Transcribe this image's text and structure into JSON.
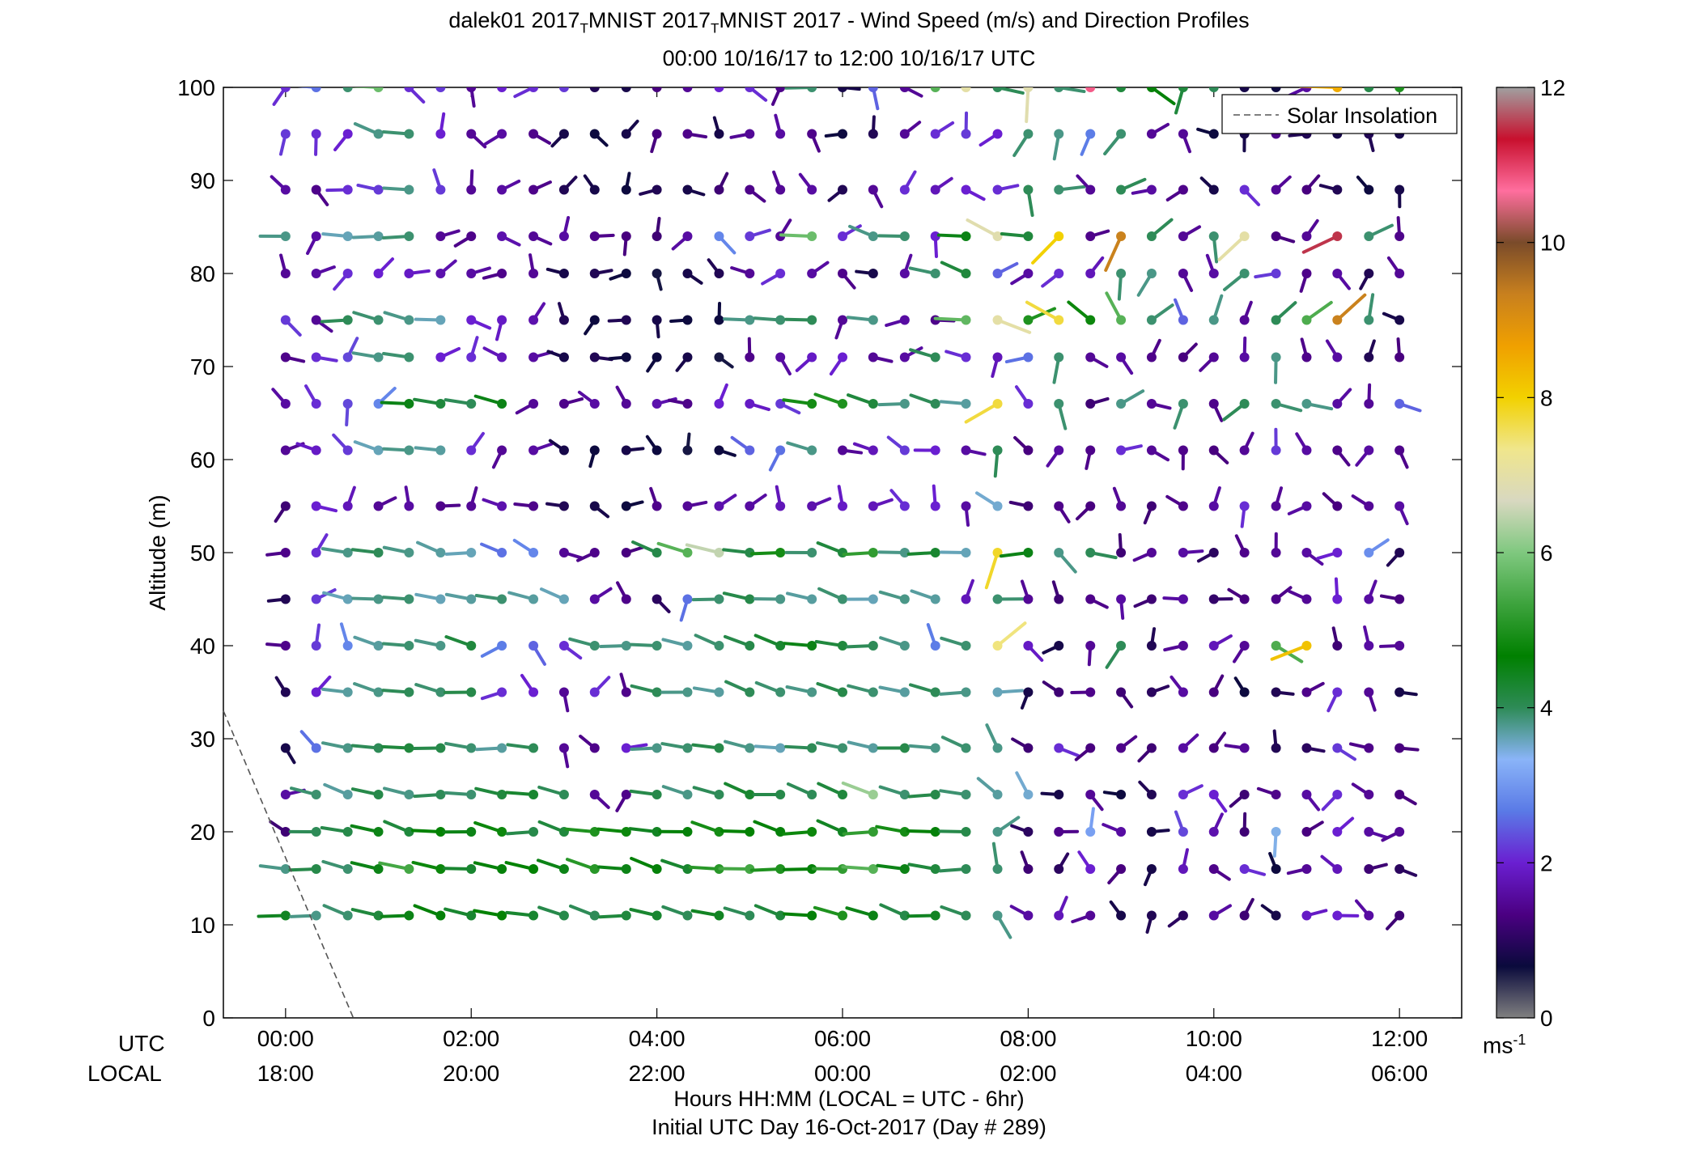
{
  "chart_data": {
    "type": "wind_barb_profile",
    "title": {
      "prefix": "dalek01 2017",
      "sub1": "T",
      "mid": "MNIST 2017",
      "sub2": "T",
      "suffix": "MNIST 2017 - Wind Speed (m/s) and Direction Profiles"
    },
    "subtitle": "00:00 10/16/17 to 12:00 10/16/17  UTC",
    "ylabel": "Altitude (m)",
    "ylim": [
      0,
      100
    ],
    "y_ticks": [
      "0",
      "10",
      "20",
      "30",
      "40",
      "50",
      "60",
      "70",
      "80",
      "90",
      "100"
    ],
    "xlim_hours": [
      -0.67,
      12.67
    ],
    "x_ticks_hours": [
      0,
      2,
      4,
      6,
      8,
      10,
      12
    ],
    "x_ticks_utc": [
      "00:00",
      "02:00",
      "04:00",
      "06:00",
      "08:00",
      "10:00",
      "12:00"
    ],
    "x_ticks_local": [
      "18:00",
      "20:00",
      "22:00",
      "00:00",
      "02:00",
      "04:00",
      "06:00"
    ],
    "utc_label": "UTC",
    "local_label": "LOCAL",
    "xlabel": "Hours HH:MM  (LOCAL = UTC - 6hr)",
    "xlabel2": "Initial UTC Day 16-Oct-2017 (Day # 289)",
    "legend": {
      "entry": "Solar Insolation",
      "placement": "top-right"
    },
    "solar_insolation_line": {
      "x_hours": [
        -0.67,
        0.73
      ],
      "y_m": [
        33,
        0
      ]
    },
    "colorbar": {
      "min": 0,
      "max": 12,
      "ticks": [
        "0",
        "2",
        "4",
        "6",
        "8",
        "10",
        "12"
      ],
      "unit_label": "ms",
      "unit_exp": "-1",
      "stops": [
        "#808080",
        "#0a0a3c",
        "#4b0082",
        "#6a1fd1",
        "#5a7ae6",
        "#8ab4f8",
        "#2e8b57",
        "#008000",
        "#3da33d",
        "#7fc87f",
        "#d8d8c0",
        "#f0e68c",
        "#f2d100",
        "#f0a000",
        "#c8801e",
        "#7a4b2a",
        "#ff6e9e",
        "#c8102e",
        "#a0a0a0"
      ]
    },
    "altitudes_m": [
      11,
      16,
      20,
      24,
      29,
      35,
      40,
      45,
      50,
      55,
      61,
      66,
      71,
      75,
      80,
      84,
      89,
      95,
      100
    ],
    "times_hours": [
      0,
      0.33,
      0.67,
      1,
      1.33,
      1.67,
      2,
      2.33,
      2.67,
      3,
      3.33,
      3.67,
      4,
      4.33,
      4.67,
      5,
      5.33,
      5.67,
      6,
      6.33,
      6.67,
      7,
      7.33,
      7.67,
      8,
      8.33,
      8.67,
      9,
      9.33,
      9.67,
      10,
      10.33,
      10.67,
      11,
      11.33,
      11.67,
      12
    ],
    "speed_scale_ms": {
      "11": [
        4.4,
        3.8,
        3.9,
        4.2,
        4.5,
        4.6,
        4.3,
        4.7,
        4.3,
        4.1,
        4.0,
        4.2,
        4.3,
        4.0,
        4.4,
        4.0,
        4.2,
        4.6,
        5.0,
        4.5,
        4.1,
        4.4,
        4.0,
        3.8,
        1.6,
        1.8,
        1.5,
        0.8,
        0.9,
        1.0,
        1.6,
        1.2,
        0.8,
        1.9,
        2.0,
        1.6,
        1.2
      ],
      "16": [
        3.8,
        4.1,
        3.9,
        4.5,
        5.4,
        4.8,
        4.3,
        4.6,
        4.7,
        4.5,
        5.1,
        4.5,
        4.6,
        4.3,
        5.1,
        5.4,
        5.0,
        4.6,
        5.2,
        5.6,
        4.5,
        4.2,
        4.0,
        3.9,
        1.2,
        1.0,
        2.0,
        1.3,
        0.8,
        1.8,
        1.4,
        2.1,
        0.7,
        1.5,
        1.8,
        1.2,
        1.0
      ],
      "20": [
        1.2,
        4.0,
        4.1,
        4.5,
        4.2,
        4.7,
        4.5,
        4.8,
        4.1,
        4.2,
        5.0,
        4.8,
        4.4,
        4.6,
        4.9,
        4.7,
        4.6,
        4.8,
        4.4,
        5.2,
        4.9,
        4.6,
        4.1,
        3.8,
        1.0,
        1.4,
        3.1,
        1.6,
        0.8,
        2.3,
        1.7,
        1.2,
        3.4,
        1.3,
        2.0,
        1.6,
        1.5
      ],
      "24": [
        1.6,
        3.9,
        3.7,
        4.1,
        3.8,
        4.0,
        3.9,
        4.2,
        4.3,
        4.0,
        1.5,
        1.4,
        4.1,
        3.8,
        4.0,
        4.3,
        4.1,
        4.0,
        4.2,
        6.2,
        3.9,
        4.1,
        3.9,
        3.7,
        3.5,
        0.8,
        1.5,
        0.7,
        0.9,
        2.1,
        2.0,
        1.2,
        1.4,
        1.6,
        2.1,
        1.5,
        1.3
      ],
      "29": [
        0.8,
        2.6,
        3.8,
        4.0,
        4.2,
        4.1,
        3.9,
        3.7,
        4.0,
        1.5,
        1.4,
        2.0,
        3.8,
        3.9,
        4.1,
        3.8,
        3.6,
        4.0,
        3.9,
        3.7,
        4.1,
        3.8,
        3.9,
        3.8,
        1.2,
        2.1,
        1.3,
        1.4,
        1.2,
        1.6,
        1.3,
        1.5,
        0.9,
        1.0,
        2.2,
        1.4,
        1.3
      ],
      "35": [
        0.9,
        2.0,
        3.7,
        3.8,
        4.0,
        3.9,
        4.1,
        2.1,
        2.0,
        1.5,
        2.1,
        1.4,
        4.0,
        3.8,
        3.7,
        4.0,
        3.9,
        3.8,
        4.1,
        3.9,
        3.7,
        4.0,
        3.8,
        3.6,
        0.8,
        1.2,
        1.4,
        1.2,
        1.0,
        1.6,
        1.3,
        0.7,
        0.9,
        1.4,
        2.1,
        1.5,
        0.8
      ],
      "40": [
        1.4,
        2.2,
        2.8,
        3.7,
        3.9,
        3.8,
        4.2,
        2.7,
        2.5,
        2.1,
        3.9,
        3.8,
        3.9,
        3.7,
        3.9,
        4.1,
        4.3,
        4.5,
        4.2,
        4.0,
        3.8,
        2.7,
        3.9,
        7.4,
        1.9,
        0.8,
        1.5,
        4.0,
        0.9,
        1.5,
        1.8,
        1.5,
        5.5,
        8.2,
        1.2,
        1.6,
        1.5
      ],
      "45": [
        0.9,
        2.2,
        3.6,
        3.8,
        3.9,
        3.6,
        3.7,
        3.9,
        3.7,
        3.6,
        1.6,
        1.4,
        1.0,
        2.6,
        3.9,
        4.1,
        3.8,
        3.7,
        3.9,
        3.6,
        3.8,
        3.7,
        1.8,
        3.9,
        1.5,
        1.2,
        1.4,
        1.6,
        1.2,
        1.6,
        1.1,
        1.3,
        1.4,
        1.5,
        2.0,
        1.6,
        1.3
      ],
      "50": [
        1.4,
        2.1,
        3.8,
        4.0,
        3.8,
        3.7,
        3.6,
        2.6,
        2.8,
        1.5,
        1.4,
        1.3,
        4.1,
        5.6,
        6.5,
        4.1,
        4.9,
        3.9,
        4.2,
        5.2,
        3.8,
        4.3,
        3.6,
        7.8,
        4.5,
        3.8,
        4.0,
        1.2,
        1.5,
        1.6,
        1.0,
        1.4,
        1.5,
        1.6,
        2.0,
        2.9,
        0.9
      ],
      "55": [
        1.2,
        2.0,
        1.8,
        1.5,
        1.6,
        1.4,
        1.5,
        1.7,
        1.4,
        0.9,
        0.8,
        0.7,
        1.4,
        1.5,
        1.7,
        1.6,
        1.8,
        1.7,
        1.9,
        1.8,
        2.1,
        2.0,
        1.6,
        3.5,
        1.2,
        1.4,
        1.3,
        1.5,
        1.2,
        1.4,
        1.6,
        2.1,
        1.5,
        1.6,
        1.3,
        1.5,
        1.6
      ],
      "61": [
        1.5,
        1.9,
        2.2,
        3.6,
        3.8,
        3.7,
        2.1,
        1.5,
        1.6,
        0.8,
        0.7,
        0.8,
        0.7,
        0.6,
        0.7,
        2.5,
        2.6,
        3.8,
        1.5,
        1.8,
        2.2,
        2.0,
        1.6,
        4.0,
        1.3,
        1.6,
        1.4,
        2.1,
        1.5,
        1.4,
        1.3,
        1.5,
        2.2,
        1.6,
        1.4,
        1.6,
        1.4
      ],
      "66": [
        1.6,
        2.1,
        2.3,
        2.8,
        4.5,
        4.2,
        4.0,
        4.5,
        1.5,
        1.4,
        1.6,
        1.5,
        1.7,
        1.4,
        2.0,
        1.9,
        2.2,
        4.9,
        5.0,
        4.2,
        3.8,
        4.0,
        3.7,
        7.7,
        2.1,
        3.9,
        1.2,
        3.8,
        1.5,
        3.9,
        1.4,
        4.0,
        3.9,
        3.8,
        1.6,
        1.5,
        2.5
      ],
      "71": [
        1.4,
        2.1,
        2.3,
        3.8,
        3.9,
        2.0,
        2.1,
        1.8,
        1.6,
        0.8,
        0.9,
        0.7,
        0.7,
        0.8,
        0.6,
        1.4,
        1.6,
        1.9,
        2.0,
        1.5,
        1.6,
        4.0,
        2.1,
        1.8,
        2.6,
        3.9,
        1.5,
        1.6,
        1.4,
        1.3,
        1.5,
        1.6,
        3.8,
        1.4,
        1.6,
        0.9,
        1.3
      ],
      "75": [
        2.2,
        1.5,
        4.0,
        3.9,
        3.8,
        3.6,
        2.0,
        1.9,
        1.7,
        0.9,
        0.7,
        0.9,
        0.8,
        0.7,
        0.7,
        3.8,
        3.9,
        4.0,
        1.5,
        3.8,
        1.6,
        1.4,
        5.7,
        7.0,
        5.0,
        7.7,
        4.8,
        5.6,
        3.9,
        2.5,
        3.8,
        1.5,
        4.0,
        5.5,
        9.3,
        3.9,
        0.8
      ],
      "80": [
        1.5,
        1.6,
        2.1,
        2.0,
        1.9,
        1.7,
        1.6,
        1.4,
        1.5,
        0.8,
        0.9,
        0.7,
        0.6,
        0.8,
        0.9,
        1.5,
        2.1,
        1.6,
        1.4,
        0.8,
        1.6,
        3.9,
        4.2,
        2.5,
        1.6,
        2.1,
        1.8,
        3.9,
        3.8,
        1.5,
        1.6,
        3.9,
        2.2,
        1.4,
        1.6,
        0.9,
        1.5
      ],
      "84": [
        3.8,
        1.6,
        3.6,
        3.7,
        3.9,
        1.5,
        1.4,
        1.7,
        1.5,
        1.6,
        1.4,
        1.3,
        1.2,
        1.6,
        2.8,
        2.2,
        1.5,
        5.8,
        2.1,
        3.8,
        3.9,
        2.0,
        4.5,
        6.9,
        4.2,
        8.0,
        1.4,
        9.3,
        4.0,
        1.5,
        3.9,
        7.0,
        1.3,
        1.5,
        11.5,
        3.9,
        1.4
      ],
      "89": [
        1.6,
        1.4,
        2.1,
        2.2,
        3.8,
        2.2,
        1.5,
        1.6,
        1.4,
        0.9,
        0.8,
        0.7,
        0.9,
        0.8,
        1.2,
        1.4,
        1.5,
        1.6,
        0.9,
        1.5,
        2.1,
        1.8,
        2.0,
        2.1,
        4.0,
        3.9,
        1.5,
        4.0,
        1.6,
        1.4,
        0.8,
        2.1,
        1.5,
        1.3,
        0.9,
        0.7,
        0.8
      ],
      "95": [
        2.2,
        2.1,
        2.0,
        3.8,
        3.9,
        2.0,
        1.5,
        1.6,
        1.4,
        0.8,
        0.7,
        0.8,
        1.3,
        1.4,
        0.8,
        1.5,
        1.6,
        1.4,
        0.7,
        0.9,
        1.5,
        2.1,
        2.2,
        2.0,
        3.9,
        3.8,
        2.7,
        3.9,
        1.5,
        1.5,
        0.7,
        0.8,
        1.4,
        0.9,
        0.8,
        0.9,
        0.8
      ],
      "100": [
        2.1,
        2.6,
        3.9,
        5.8,
        2.1,
        2.2,
        1.5,
        2.0,
        2.1,
        2.2,
        0.9,
        0.8,
        1.3,
        1.5,
        2.0,
        2.1,
        1.4,
        3.9,
        0.8,
        2.5,
        1.5,
        5.6,
        7.0,
        4.0,
        6.9,
        3.9,
        10.8,
        4.2,
        4.6,
        4.2,
        4.0,
        0.8,
        0.7,
        1.6,
        8.5,
        4.1,
        5.0
      ]
    }
  }
}
